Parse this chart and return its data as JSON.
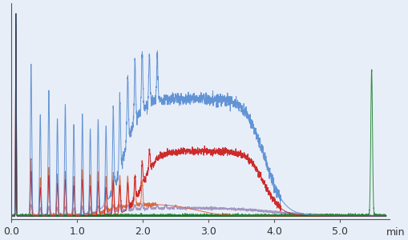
{
  "xlim": [
    0.0,
    5.75
  ],
  "ylim": [
    -0.015,
    1.05
  ],
  "xlabel": "min",
  "xticks": [
    0.0,
    1.0,
    2.0,
    3.0,
    4.0,
    5.0
  ],
  "background_color": "#e8eef8",
  "spine_color": "#555555",
  "colors": {
    "blue": "#5b8fd4",
    "red": "#cc2020",
    "orange": "#dd6030",
    "purple": "#9988bb",
    "green": "#228833",
    "black": "#222222"
  },
  "seed": 7
}
